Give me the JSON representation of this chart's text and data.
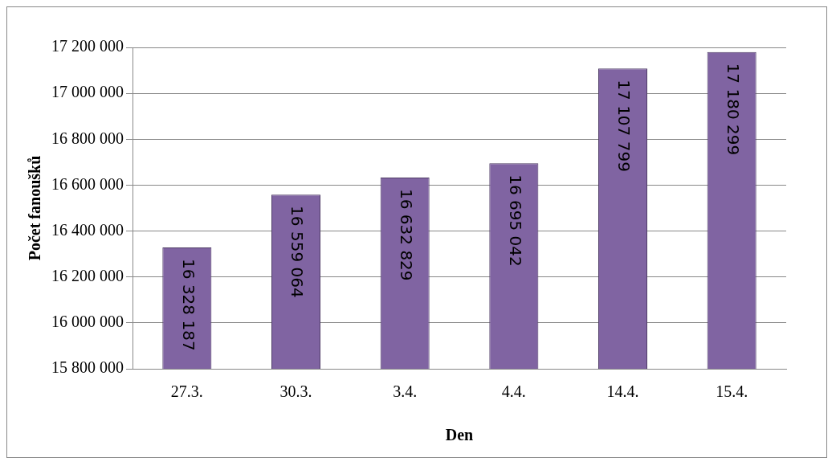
{
  "chart_data": {
    "type": "bar",
    "xlabel": "Den",
    "ylabel": "Počet fanoušků",
    "categories": [
      "27.3.",
      "30.3.",
      "3.4.",
      "4.4.",
      "14.4.",
      "15.4."
    ],
    "values": [
      16328187,
      16559064,
      16632829,
      16695042,
      17107799,
      17180299
    ],
    "value_labels": [
      "16 328 187",
      "16 559 064",
      "16 632 829",
      "16 695 042",
      "17 107 799",
      "17 180 299"
    ],
    "color": "#8064a2",
    "ylim": [
      15800000,
      17200000
    ],
    "yticks": [
      {
        "value": 15800000,
        "label": "15 800 000"
      },
      {
        "value": 16000000,
        "label": "16 000 000"
      },
      {
        "value": 16200000,
        "label": "16 200 000"
      },
      {
        "value": 16400000,
        "label": "16 400 000"
      },
      {
        "value": 16600000,
        "label": "16 600 000"
      },
      {
        "value": 16800000,
        "label": "16 800 000"
      },
      {
        "value": 17000000,
        "label": "17 000 000"
      },
      {
        "value": 17200000,
        "label": "17 200 000"
      }
    ],
    "grid": "y",
    "legend": false
  }
}
